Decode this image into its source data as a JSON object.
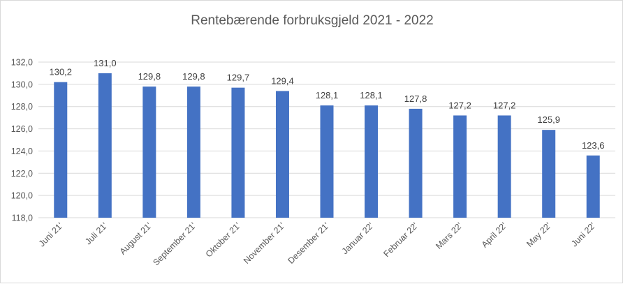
{
  "chart_data": {
    "type": "bar",
    "title": "Rentebærende forbruksgjeld 2021 - 2022",
    "xlabel": "",
    "ylabel": "",
    "categories": [
      "Juni 21'",
      "Juli 21'",
      "August 21'",
      "September 21'",
      "Oktober 21'",
      "November 21'",
      "Desember 21'",
      "Januar 22'",
      "Februar 22'",
      "Mars 22'",
      "April 22'",
      "May 22'",
      "Juni 22'"
    ],
    "values": [
      130.2,
      131.0,
      129.8,
      129.8,
      129.7,
      129.4,
      128.1,
      128.1,
      127.8,
      127.2,
      127.2,
      125.9,
      123.6
    ],
    "data_labels": [
      "130,2",
      "131,0",
      "129,8",
      "129,8",
      "129,7",
      "129,4",
      "128,1",
      "128,1",
      "127,8",
      "127,2",
      "127,2",
      "125,9",
      "123,6"
    ],
    "y_ticks": [
      "118,0",
      "120,0",
      "122,0",
      "124,0",
      "126,0",
      "128,0",
      "130,0",
      "132,0"
    ],
    "ylim": [
      118,
      132
    ],
    "grid": true,
    "bar_color": "#4472C4",
    "grid_color": "#d9d9d9"
  }
}
